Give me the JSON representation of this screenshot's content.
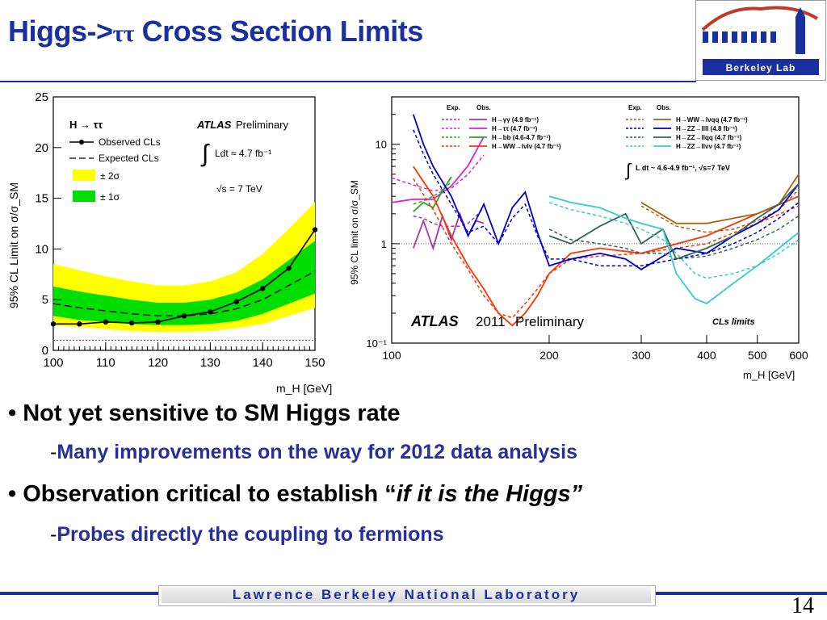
{
  "slide": {
    "title_prefix": "Higgs->",
    "title_symbol": "ττ",
    "title_suffix": " Cross Section Limits",
    "page_number": "14",
    "footer": "Lawrence Berkeley National Laboratory",
    "logo_text": "Berkeley Lab",
    "bullets": [
      {
        "text": "Not yet sensitive to SM Higgs rate"
      },
      {
        "text": "Observation critical to establish “",
        "italic": "if it is the Higgs”"
      }
    ],
    "subbullets": [
      {
        "dash": "-",
        "text": "Many improvements on the way for 2012 data analysis"
      },
      {
        "dash": "-",
        "text": "Probes directly the coupling to fermions"
      }
    ]
  },
  "chart_data": [
    {
      "type": "line",
      "xlabel": "m_H [GeV]",
      "ylabel": "95% CL Limit on σ/σ_SM",
      "xlim": [
        100,
        150
      ],
      "ylim": [
        0,
        25
      ],
      "xticks": [
        100,
        110,
        120,
        130,
        140,
        150
      ],
      "yticks": [
        0,
        5,
        10,
        15,
        20,
        25
      ],
      "legend": {
        "process": "H → ττ",
        "observed": "Observed CLs",
        "expected": "Expected CLs",
        "band2": "± 2σ",
        "band1": "± 1σ"
      },
      "annotations": {
        "experiment": "ATLAS",
        "status": "Preliminary",
        "lumi": "Ldt ≈ 4.7 fb⁻¹",
        "energy": "√s = 7 TeV"
      },
      "x": [
        100,
        105,
        110,
        115,
        120,
        125,
        130,
        135,
        140,
        145,
        150
      ],
      "series": [
        {
          "name": "Observed CLs",
          "values": [
            2.6,
            2.6,
            2.8,
            2.7,
            2.8,
            3.4,
            3.8,
            4.8,
            6.1,
            8.1,
            11.9
          ],
          "color": "#000000"
        },
        {
          "name": "Expected CLs",
          "values": [
            4.6,
            4.2,
            3.9,
            3.6,
            3.4,
            3.4,
            3.6,
            4.1,
            5.0,
            6.4,
            7.8
          ],
          "color": "#000000"
        }
      ],
      "band1_low": [
        3.4,
        3.0,
        2.8,
        2.6,
        2.5,
        2.5,
        2.6,
        2.9,
        3.6,
        4.6,
        5.6
      ],
      "band1_high": [
        6.3,
        5.8,
        5.4,
        5.0,
        4.7,
        4.7,
        5.0,
        5.7,
        7.0,
        8.9,
        10.8
      ],
      "band2_low": [
        2.5,
        2.3,
        2.1,
        1.9,
        1.8,
        1.8,
        1.9,
        2.2,
        2.6,
        3.4,
        4.2
      ],
      "band2_high": [
        8.5,
        7.9,
        7.3,
        6.8,
        6.4,
        6.4,
        6.8,
        7.7,
        9.5,
        12.0,
        14.6
      ],
      "reference_line": 1
    },
    {
      "type": "line",
      "xlabel": "m_H [GeV]",
      "ylabel": "95% CL limit on σ/σ_SM",
      "xscale": "log",
      "yscale": "log",
      "xlim": [
        100,
        600
      ],
      "ylim": [
        0.1,
        30
      ],
      "xticks": [
        100,
        200,
        300,
        400,
        500,
        600
      ],
      "yticks": [
        "10⁻¹",
        "1",
        "10"
      ],
      "legend_headers": {
        "expected": "Exp.",
        "observed": "Obs."
      },
      "annotations": {
        "experiment": "ATLAS",
        "year": "2011",
        "status": "Preliminary",
        "method": "CLs limits",
        "lumi": "L dt ~ 4.6-4.9 fb⁻¹, √s=7 TeV"
      },
      "series": [
        {
          "name": "H→γγ (4.9 fb⁻¹)",
          "color": "#aa33aa",
          "x": [
            110,
            115,
            120,
            125,
            130,
            135,
            140,
            145,
            150
          ],
          "obs": [
            0.9,
            1.7,
            0.9,
            1.9,
            1.1,
            2.0,
            1.2,
            1.7,
            1.6
          ],
          "exp": [
            1.9,
            1.8,
            1.6,
            1.5,
            1.5,
            1.5,
            1.6,
            1.9,
            2.3
          ]
        },
        {
          "name": "H→ττ (4.7 fb⁻¹)",
          "color": "#dd22dd",
          "x": [
            100,
            110,
            120,
            130,
            140,
            150
          ],
          "obs": [
            2.6,
            2.8,
            2.8,
            3.8,
            6.1,
            11.9
          ],
          "exp": [
            4.6,
            3.9,
            3.4,
            3.6,
            5.0,
            7.8
          ]
        },
        {
          "name": "H→bb (4.6-4.7 fb⁻¹)",
          "color": "#22aa22",
          "x": [
            110,
            115,
            120,
            125,
            130
          ],
          "obs": [
            2.1,
            2.6,
            2.3,
            3.4,
            4.7
          ],
          "exp": [
            2.5,
            2.7,
            3.0,
            3.4,
            4.2
          ]
        },
        {
          "name": "H→WW→lνlν (4.7 fb⁻¹)",
          "color": "#ff3300",
          "x": [
            110,
            120,
            130,
            140,
            150,
            160,
            170,
            180,
            190,
            200,
            220,
            250,
            300,
            400,
            500,
            600
          ],
          "obs": [
            6.0,
            3.0,
            1.2,
            0.6,
            0.35,
            0.2,
            0.15,
            0.2,
            0.3,
            0.5,
            0.8,
            0.9,
            0.8,
            1.2,
            2.0,
            3.0
          ],
          "exp": [
            4.5,
            2.2,
            1.0,
            0.55,
            0.3,
            0.2,
            0.18,
            0.25,
            0.35,
            0.5,
            0.7,
            0.75,
            0.8,
            1.0,
            1.6,
            2.4
          ]
        },
        {
          "name": "H→WW→lνqq (4.7 fb⁻¹)",
          "color": "#b06010",
          "x": [
            300,
            350,
            400,
            450,
            500,
            550,
            600
          ],
          "obs": [
            2.6,
            1.6,
            1.6,
            1.8,
            2.0,
            2.5,
            5.0
          ],
          "exp": [
            2.4,
            1.5,
            1.3,
            1.4,
            1.7,
            2.2,
            3.5
          ]
        },
        {
          "name": "H→ZZ→llll (4.8 fb⁻¹)",
          "color": "#0000cc",
          "x": [
            110,
            115,
            120,
            130,
            140,
            150,
            160,
            170,
            180,
            190,
            200,
            220,
            250,
            280,
            300,
            350,
            400,
            450,
            500,
            550,
            600
          ],
          "obs": [
            20.0,
            10.0,
            6.0,
            3.0,
            1.2,
            2.5,
            1.0,
            2.3,
            3.3,
            1.3,
            0.6,
            0.7,
            0.8,
            0.7,
            0.55,
            0.9,
            0.8,
            1.2,
            1.6,
            2.2,
            4.0
          ],
          "exp": [
            14.0,
            8.0,
            5.0,
            2.5,
            1.3,
            1.5,
            1.0,
            1.8,
            2.5,
            1.2,
            0.7,
            0.7,
            0.6,
            0.6,
            0.6,
            0.7,
            0.8,
            1.0,
            1.3,
            1.8,
            2.6
          ]
        },
        {
          "name": "H→ZZ→llqq (4.7 fb⁻¹)",
          "color": "#336655",
          "x": [
            200,
            220,
            250,
            280,
            300,
            330,
            350,
            400,
            450,
            500,
            550,
            600
          ],
          "obs": [
            1.2,
            1.0,
            1.5,
            2.0,
            1.0,
            1.4,
            0.7,
            0.9,
            1.2,
            1.8,
            2.5,
            4.0
          ],
          "exp": [
            1.4,
            1.1,
            1.0,
            0.9,
            0.8,
            0.8,
            0.7,
            0.75,
            0.9,
            1.1,
            1.4,
            1.9
          ]
        },
        {
          "name": "H→ZZ→llνν (4.7 fb⁻¹)",
          "color": "#33cccc",
          "x": [
            200,
            220,
            250,
            280,
            300,
            330,
            350,
            380,
            400,
            450,
            500,
            550,
            600
          ],
          "obs": [
            3.0,
            2.6,
            2.3,
            1.8,
            1.6,
            1.4,
            0.5,
            0.28,
            0.25,
            0.4,
            0.6,
            0.9,
            1.3
          ],
          "exp": [
            2.6,
            2.2,
            1.9,
            1.6,
            1.4,
            1.1,
            0.8,
            0.5,
            0.45,
            0.5,
            0.6,
            0.8,
            1.1
          ]
        }
      ]
    }
  ]
}
